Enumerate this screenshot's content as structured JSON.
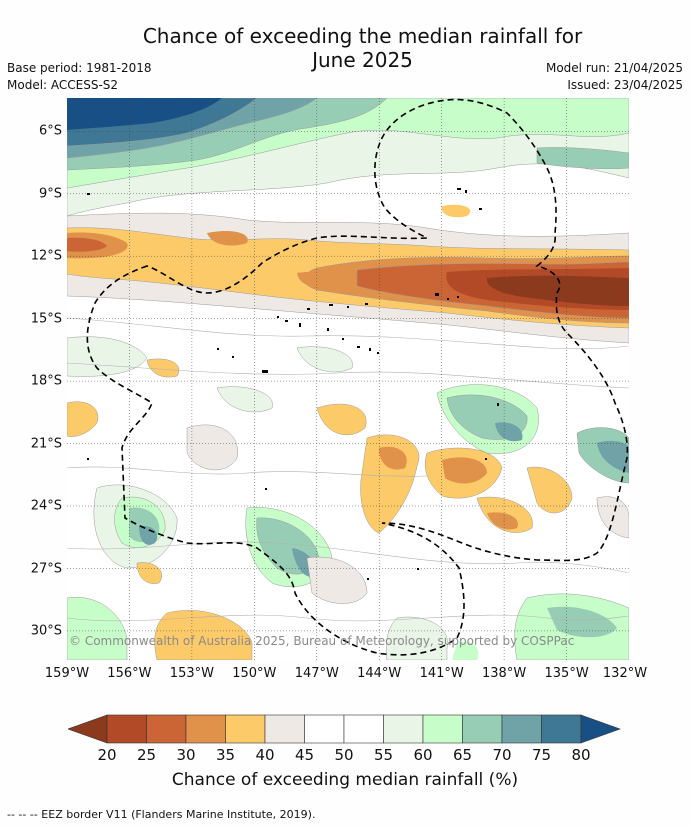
{
  "header": {
    "title_line1": "Chance of exceeding the median rainfall for",
    "title_line2": "June 2025",
    "base_period": "Base period: 1981-2018",
    "model": "Model: ACCESS-S2",
    "model_run": "Model run: 21/04/2025",
    "issued": "Issued: 23/04/2025"
  },
  "map": {
    "lon_labels": [
      "159°W",
      "156°W",
      "153°W",
      "150°W",
      "147°W",
      "144°W",
      "141°W",
      "138°W",
      "135°W",
      "132°W"
    ],
    "lat_labels": [
      "6°S",
      "9°S",
      "12°S",
      "15°S",
      "18°S",
      "21°S",
      "24°S",
      "27°S",
      "30°S"
    ],
    "lon_range": [
      -159,
      -132
    ],
    "lat_range": [
      -4.8,
      -31.8
    ],
    "copyright": "© Commonwealth of Australia 2025, Bureau of Meteorology, supported by COSPPac",
    "grid": true,
    "eez_border_style": "dashed"
  },
  "colorbar": {
    "tick_labels": [
      "20",
      "25",
      "30",
      "35",
      "40",
      "45",
      "50",
      "55",
      "60",
      "65",
      "70",
      "75",
      "80"
    ],
    "bins": [
      {
        "color": "#8c3a1e"
      },
      {
        "color": "#b34a27"
      },
      {
        "color": "#cc6535"
      },
      {
        "color": "#e0924a"
      },
      {
        "color": "#fdca6a"
      },
      {
        "color": "#efe9e5"
      },
      {
        "color": "#ffffff"
      },
      {
        "color": "#ffffff"
      },
      {
        "color": "#e8f5e7"
      },
      {
        "color": "#c6fdc9"
      },
      {
        "color": "#98cdb5"
      },
      {
        "color": "#6fa3a8"
      },
      {
        "color": "#3f7895"
      },
      {
        "color": "#184f85"
      }
    ],
    "title": "Chance of exceeding median rainfall (%)"
  },
  "footnote": "--  --  -- EEZ border V11 (Flanders Marine Institute, 2019)."
}
